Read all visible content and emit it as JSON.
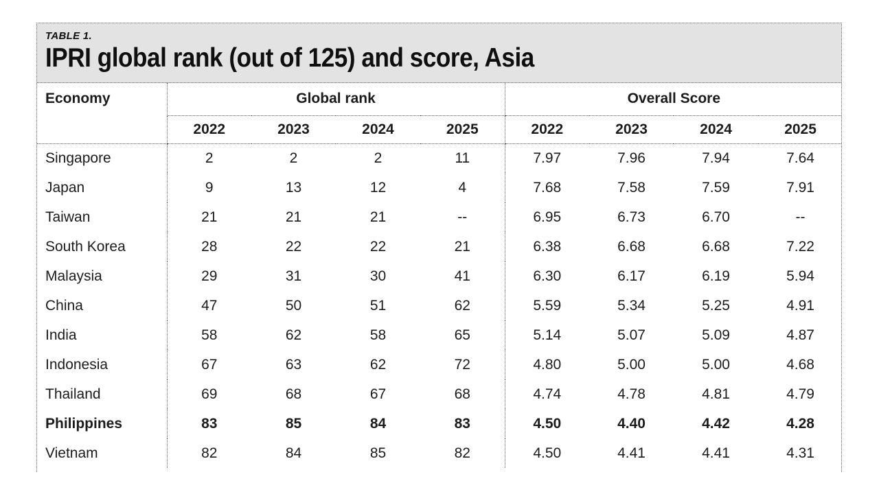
{
  "header": {
    "table_label": "TABLE 1.",
    "title": "IPRI global rank (out of 125) and score, Asia"
  },
  "table": {
    "economy_header": "Economy",
    "groups": [
      {
        "label": "Global rank",
        "years": [
          "2022",
          "2023",
          "2024",
          "2025"
        ]
      },
      {
        "label": "Overall Score",
        "years": [
          "2022",
          "2023",
          "2024",
          "2025"
        ]
      }
    ],
    "rows": [
      {
        "economy": "Singapore",
        "rank": [
          "2",
          "2",
          "2",
          "11"
        ],
        "score": [
          "7.97",
          "7.96",
          "7.94",
          "7.64"
        ],
        "bold": false
      },
      {
        "economy": "Japan",
        "rank": [
          "9",
          "13",
          "12",
          "4"
        ],
        "score": [
          "7.68",
          "7.58",
          "7.59",
          "7.91"
        ],
        "bold": false
      },
      {
        "economy": "Taiwan",
        "rank": [
          "21",
          "21",
          "21",
          "--"
        ],
        "score": [
          "6.95",
          "6.73",
          "6.70",
          "--"
        ],
        "bold": false
      },
      {
        "economy": "South Korea",
        "rank": [
          "28",
          "22",
          "22",
          "21"
        ],
        "score": [
          "6.38",
          "6.68",
          "6.68",
          "7.22"
        ],
        "bold": false
      },
      {
        "economy": "Malaysia",
        "rank": [
          "29",
          "31",
          "30",
          "41"
        ],
        "score": [
          "6.30",
          "6.17",
          "6.19",
          "5.94"
        ],
        "bold": false
      },
      {
        "economy": "China",
        "rank": [
          "47",
          "50",
          "51",
          "62"
        ],
        "score": [
          "5.59",
          "5.34",
          "5.25",
          "4.91"
        ],
        "bold": false
      },
      {
        "economy": "India",
        "rank": [
          "58",
          "62",
          "58",
          "65"
        ],
        "score": [
          "5.14",
          "5.07",
          "5.09",
          "4.87"
        ],
        "bold": false
      },
      {
        "economy": "Indonesia",
        "rank": [
          "67",
          "63",
          "62",
          "72"
        ],
        "score": [
          "4.80",
          "5.00",
          "5.00",
          "4.68"
        ],
        "bold": false
      },
      {
        "economy": "Thailand",
        "rank": [
          "69",
          "68",
          "67",
          "68"
        ],
        "score": [
          "4.74",
          "4.78",
          "4.81",
          "4.79"
        ],
        "bold": false
      },
      {
        "economy": "Philippines",
        "rank": [
          "83",
          "85",
          "84",
          "83"
        ],
        "score": [
          "4.50",
          "4.40",
          "4.42",
          "4.28"
        ],
        "bold": true
      },
      {
        "economy": "Vietnam",
        "rank": [
          "82",
          "84",
          "85",
          "82"
        ],
        "score": [
          "4.50",
          "4.41",
          "4.41",
          "4.31"
        ],
        "bold": false
      }
    ]
  },
  "chart_data": {
    "type": "table",
    "title": "IPRI global rank (out of 125) and score, Asia",
    "subtitle": "TABLE 1.",
    "column_groups": [
      "Global rank",
      "Overall Score"
    ],
    "years": [
      2022,
      2023,
      2024,
      2025
    ],
    "rank_out_of": 125,
    "rows": [
      {
        "economy": "Singapore",
        "global_rank": [
          2,
          2,
          2,
          11
        ],
        "overall_score": [
          7.97,
          7.96,
          7.94,
          7.64
        ],
        "highlighted": false
      },
      {
        "economy": "Japan",
        "global_rank": [
          9,
          13,
          12,
          4
        ],
        "overall_score": [
          7.68,
          7.58,
          7.59,
          7.91
        ],
        "highlighted": false
      },
      {
        "economy": "Taiwan",
        "global_rank": [
          21,
          21,
          21,
          null
        ],
        "overall_score": [
          6.95,
          6.73,
          6.7,
          null
        ],
        "highlighted": false
      },
      {
        "economy": "South Korea",
        "global_rank": [
          28,
          22,
          22,
          21
        ],
        "overall_score": [
          6.38,
          6.68,
          6.68,
          7.22
        ],
        "highlighted": false
      },
      {
        "economy": "Malaysia",
        "global_rank": [
          29,
          31,
          30,
          41
        ],
        "overall_score": [
          6.3,
          6.17,
          6.19,
          5.94
        ],
        "highlighted": false
      },
      {
        "economy": "China",
        "global_rank": [
          47,
          50,
          51,
          62
        ],
        "overall_score": [
          5.59,
          5.34,
          5.25,
          4.91
        ],
        "highlighted": false
      },
      {
        "economy": "India",
        "global_rank": [
          58,
          62,
          58,
          65
        ],
        "overall_score": [
          5.14,
          5.07,
          5.09,
          4.87
        ],
        "highlighted": false
      },
      {
        "economy": "Indonesia",
        "global_rank": [
          67,
          63,
          62,
          72
        ],
        "overall_score": [
          4.8,
          5.0,
          5.0,
          4.68
        ],
        "highlighted": false
      },
      {
        "economy": "Thailand",
        "global_rank": [
          69,
          68,
          67,
          68
        ],
        "overall_score": [
          4.74,
          4.78,
          4.81,
          4.79
        ],
        "highlighted": false
      },
      {
        "economy": "Philippines",
        "global_rank": [
          83,
          85,
          84,
          83
        ],
        "overall_score": [
          4.5,
          4.4,
          4.42,
          4.28
        ],
        "highlighted": true
      },
      {
        "economy": "Vietnam",
        "global_rank": [
          82,
          84,
          85,
          82
        ],
        "overall_score": [
          4.5,
          4.41,
          4.41,
          4.31
        ],
        "highlighted": false
      }
    ]
  },
  "colors": {
    "header_bg": "#e3e3e3",
    "text": "#1b1b1b",
    "title": "#0f0f0f",
    "border": "#555555",
    "page_bg": "#ffffff"
  }
}
